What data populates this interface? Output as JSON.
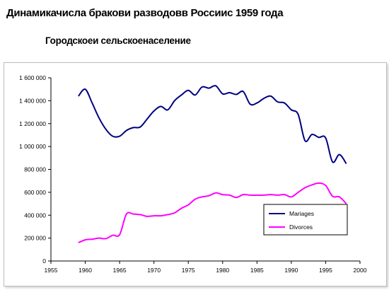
{
  "slide": {
    "title": "Динамикачисла бракови разводовв Россиис 1959 года",
    "subtitle": "Городскоеи сельскоенаселение"
  },
  "chart_data": {
    "type": "line",
    "title": "",
    "xlabel": "",
    "ylabel": "",
    "xlim": [
      1955,
      2000
    ],
    "ylim": [
      0,
      1600000
    ],
    "x_ticks": [
      1955,
      1960,
      1965,
      1970,
      1975,
      1980,
      1985,
      1990,
      1995,
      2000
    ],
    "y_ticks": [
      0,
      200000,
      400000,
      600000,
      800000,
      1000000,
      1200000,
      1400000,
      1600000
    ],
    "y_tick_labels": [
      "0",
      "200 000",
      "400 000",
      "600 000",
      "800 000",
      "1 000 000",
      "1 200 000",
      "1 400 000",
      "1 600 000"
    ],
    "grid": false,
    "legend_position": "lower-right",
    "series": [
      {
        "name": "Mariages",
        "color": "#000080",
        "x": [
          1959,
          1960,
          1961,
          1962,
          1963,
          1964,
          1965,
          1966,
          1967,
          1968,
          1969,
          1970,
          1971,
          1972,
          1973,
          1974,
          1975,
          1976,
          1977,
          1978,
          1979,
          1980,
          1981,
          1982,
          1983,
          1984,
          1985,
          1986,
          1987,
          1988,
          1989,
          1990,
          1991,
          1992,
          1993,
          1994,
          1995,
          1996,
          1997,
          1998
        ],
        "values": [
          1440000,
          1500000,
          1380000,
          1250000,
          1150000,
          1090000,
          1090000,
          1140000,
          1165000,
          1170000,
          1240000,
          1310000,
          1350000,
          1320000,
          1400000,
          1450000,
          1490000,
          1450000,
          1520000,
          1510000,
          1530000,
          1460000,
          1470000,
          1455000,
          1480000,
          1370000,
          1380000,
          1420000,
          1440000,
          1390000,
          1380000,
          1320000,
          1280000,
          1050000,
          1105000,
          1080000,
          1075000,
          865000,
          930000,
          850000
        ]
      },
      {
        "name": "Divorces",
        "color": "#ff00ff",
        "x": [
          1959,
          1960,
          1961,
          1962,
          1963,
          1964,
          1965,
          1966,
          1967,
          1968,
          1969,
          1970,
          1971,
          1972,
          1973,
          1974,
          1975,
          1976,
          1977,
          1978,
          1979,
          1980,
          1981,
          1982,
          1983,
          1984,
          1985,
          1986,
          1987,
          1988,
          1989,
          1990,
          1991,
          1992,
          1993,
          1994,
          1995,
          1996,
          1997,
          1998
        ],
        "values": [
          160000,
          185000,
          190000,
          200000,
          195000,
          225000,
          230000,
          410000,
          410000,
          405000,
          390000,
          395000,
          395000,
          405000,
          420000,
          460000,
          490000,
          540000,
          560000,
          570000,
          595000,
          580000,
          575000,
          555000,
          580000,
          575000,
          575000,
          575000,
          580000,
          575000,
          580000,
          560000,
          600000,
          640000,
          665000,
          680000,
          660000,
          565000,
          560000,
          500000
        ]
      }
    ]
  }
}
